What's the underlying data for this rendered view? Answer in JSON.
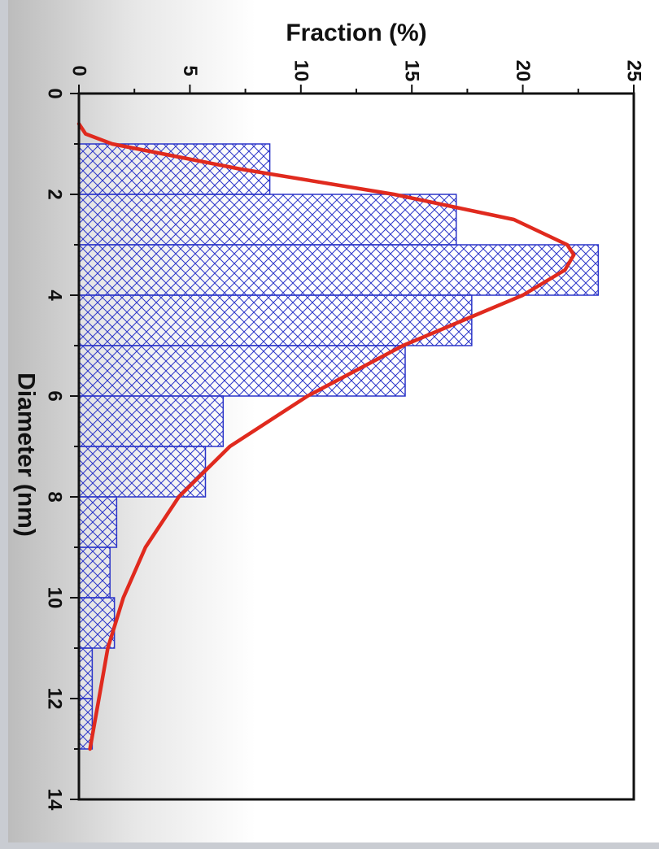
{
  "chart_data": {
    "type": "bar",
    "orientation": "rotated-90-clockwise",
    "xlabel": "Diameter (nm)",
    "ylabel": "Fraction (%)",
    "xlim": [
      0,
      14
    ],
    "ylim": [
      0,
      25
    ],
    "x_ticks": [
      0,
      2,
      4,
      6,
      8,
      10,
      12,
      14
    ],
    "y_ticks": [
      0,
      5,
      10,
      15,
      20,
      25
    ],
    "bin_width": 1,
    "bars": [
      {
        "x0": 1,
        "x1": 2,
        "value": 8.6
      },
      {
        "x0": 2,
        "x1": 3,
        "value": 17.0
      },
      {
        "x0": 3,
        "x1": 4,
        "value": 23.4
      },
      {
        "x0": 4,
        "x1": 5,
        "value": 17.7
      },
      {
        "x0": 5,
        "x1": 6,
        "value": 14.7
      },
      {
        "x0": 6,
        "x1": 7,
        "value": 6.5
      },
      {
        "x0": 7,
        "x1": 8,
        "value": 5.7
      },
      {
        "x0": 8,
        "x1": 9,
        "value": 1.7
      },
      {
        "x0": 9,
        "x1": 10,
        "value": 1.4
      },
      {
        "x0": 10,
        "x1": 11,
        "value": 1.6
      },
      {
        "x0": 11,
        "x1": 12,
        "value": 0.6
      },
      {
        "x0": 12,
        "x1": 13,
        "value": 0.6
      }
    ],
    "fit_curve": {
      "type": "lognormal",
      "points": [
        [
          0.6,
          0.0
        ],
        [
          0.8,
          0.3
        ],
        [
          1.0,
          1.5
        ],
        [
          1.5,
          7.3
        ],
        [
          2.0,
          14.2
        ],
        [
          2.5,
          19.6
        ],
        [
          3.0,
          22.0
        ],
        [
          3.2,
          22.3
        ],
        [
          3.5,
          21.9
        ],
        [
          4.0,
          20.0
        ],
        [
          4.5,
          17.3
        ],
        [
          5.0,
          14.6
        ],
        [
          6.0,
          10.3
        ],
        [
          7.0,
          6.8
        ],
        [
          8.0,
          4.5
        ],
        [
          9.0,
          3.0
        ],
        [
          10.0,
          2.0
        ],
        [
          11.0,
          1.3
        ],
        [
          12.0,
          0.9
        ],
        [
          13.0,
          0.5
        ]
      ]
    },
    "colors": {
      "bar_stroke": "#2b35c8",
      "hatch": "#2b35c8",
      "fit": "#e02a1e",
      "axis": "#111111"
    }
  }
}
